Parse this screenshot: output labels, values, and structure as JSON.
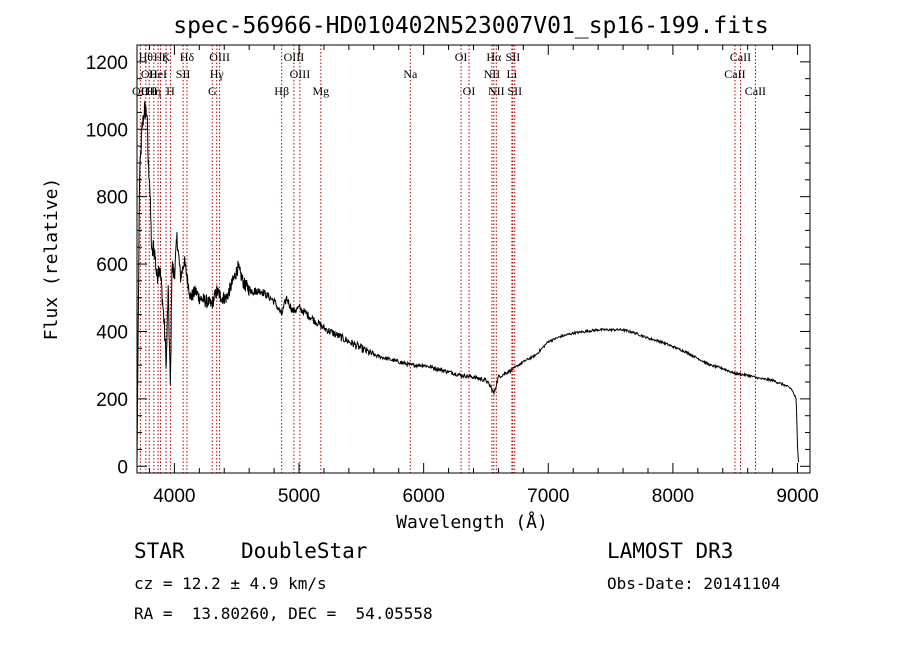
{
  "chart_data": {
    "type": "line",
    "title": "spec-56966-HD010402N523007V01_sp16-199.fits",
    "xlabel": "Wavelength (Å)",
    "ylabel": "Flux (relative)",
    "xlim": [
      3700,
      9100
    ],
    "ylim": [
      -20,
      1250
    ],
    "xticks": [
      4000,
      5000,
      6000,
      7000,
      8000,
      9000
    ],
    "yticks": [
      0,
      200,
      400,
      600,
      800,
      1000,
      1200
    ],
    "spectrum_anchors": {
      "x": [
        3700,
        3720,
        3740,
        3760,
        3780,
        3790,
        3800,
        3810,
        3820,
        3830,
        3840,
        3860,
        3880,
        3900,
        3920,
        3935,
        3950,
        3968,
        3980,
        4000,
        4020,
        4050,
        4080,
        4102,
        4130,
        4170,
        4200,
        4250,
        4300,
        4340,
        4380,
        4420,
        4480,
        4510,
        4560,
        4620,
        4700,
        4800,
        4861,
        4900,
        4950,
        5000,
        5100,
        5200,
        5300,
        5400,
        5500,
        5600,
        5700,
        5800,
        5900,
        6000,
        6100,
        6200,
        6300,
        6400,
        6500,
        6540,
        6563,
        6600,
        6700,
        6800,
        6900,
        7000,
        7100,
        7200,
        7300,
        7400,
        7500,
        7600,
        7700,
        7800,
        7900,
        8000,
        8100,
        8200,
        8300,
        8400,
        8500,
        8600,
        8700,
        8800,
        8900,
        8950,
        8990,
        9000,
        9010
      ],
      "y": [
        0,
        850,
        1000,
        1060,
        1050,
        900,
        860,
        740,
        620,
        650,
        640,
        560,
        600,
        520,
        410,
        300,
        520,
        230,
        600,
        560,
        680,
        560,
        610,
        560,
        500,
        520,
        500,
        490,
        480,
        520,
        500,
        500,
        560,
        590,
        540,
        520,
        520,
        490,
        450,
        500,
        460,
        470,
        440,
        410,
        390,
        370,
        350,
        330,
        320,
        310,
        300,
        300,
        290,
        280,
        270,
        265,
        255,
        235,
        215,
        265,
        285,
        310,
        330,
        370,
        385,
        395,
        400,
        405,
        405,
        405,
        395,
        380,
        370,
        355,
        340,
        320,
        300,
        290,
        275,
        270,
        260,
        255,
        240,
        230,
        200,
        60,
        0
      ]
    },
    "spectral_lines": [
      {
        "x": 3727,
        "rows": [
          2
        ],
        "label": "OII"
      },
      {
        "x": 3771,
        "rows": [
          0
        ],
        "label": "Hθ"
      },
      {
        "x": 3798,
        "rows": [
          1,
          2
        ],
        "label": "OII"
      },
      {
        "x": 3835,
        "rows": [
          2
        ],
        "label": "Hη"
      },
      {
        "x": 3869,
        "rows": [
          1
        ],
        "label": "HeI"
      },
      {
        "x": 3889,
        "rows": [
          0
        ],
        "label": "Hζ"
      },
      {
        "x": 3933,
        "rows": [
          0
        ],
        "label": "K"
      },
      {
        "x": 3968,
        "rows": [
          2
        ],
        "label": "H"
      },
      {
        "x": 4070,
        "rows": [
          1
        ],
        "label": "SII"
      },
      {
        "x": 4101,
        "rows": [
          0
        ],
        "label": "Hδ"
      },
      {
        "x": 4304,
        "rows": [
          2
        ],
        "label": "G"
      },
      {
        "x": 4340,
        "rows": [
          1
        ],
        "label": "Hγ"
      },
      {
        "x": 4363,
        "rows": [
          0
        ],
        "label": "OIII"
      },
      {
        "x": 4861,
        "rows": [
          2
        ],
        "label": "Hβ"
      },
      {
        "x": 4959,
        "rows": [
          0
        ],
        "label": "OIII"
      },
      {
        "x": 5007,
        "rows": [
          1
        ],
        "label": "OIII"
      },
      {
        "x": 5175,
        "rows": [
          2
        ],
        "label": "Mg"
      },
      {
        "x": 5893,
        "rows": [
          1
        ],
        "label": "Na"
      },
      {
        "x": 6300,
        "rows": [
          0
        ],
        "label": "OI"
      },
      {
        "x": 6364,
        "rows": [
          2
        ],
        "label": "OI"
      },
      {
        "x": 6548,
        "rows": [
          1
        ],
        "label": "NII"
      },
      {
        "x": 6563,
        "rows": [
          0
        ],
        "label": "Hα"
      },
      {
        "x": 6583,
        "rows": [
          2
        ],
        "label": "NII"
      },
      {
        "x": 6708,
        "rows": [
          1
        ],
        "label": "Li"
      },
      {
        "x": 6716,
        "rows": [
          0
        ],
        "label": "SII"
      },
      {
        "x": 6731,
        "rows": [
          2
        ],
        "label": "SII"
      },
      {
        "x": 8498,
        "rows": [
          1
        ],
        "label": "CaII"
      },
      {
        "x": 8542,
        "rows": [
          0
        ],
        "label": "CaII"
      },
      {
        "x": 8662,
        "rows": [
          2
        ],
        "label": "CaII"
      }
    ]
  },
  "info": {
    "class_label": "STAR",
    "subclass_label": "DoubleStar",
    "survey": "LAMOST DR3",
    "cz_text": "cz = 12.2 ± 4.9 km/s",
    "obs_date": "Obs-Date: 20141104",
    "radec_text": "RA =  13.80260, DEC =  54.05558"
  }
}
